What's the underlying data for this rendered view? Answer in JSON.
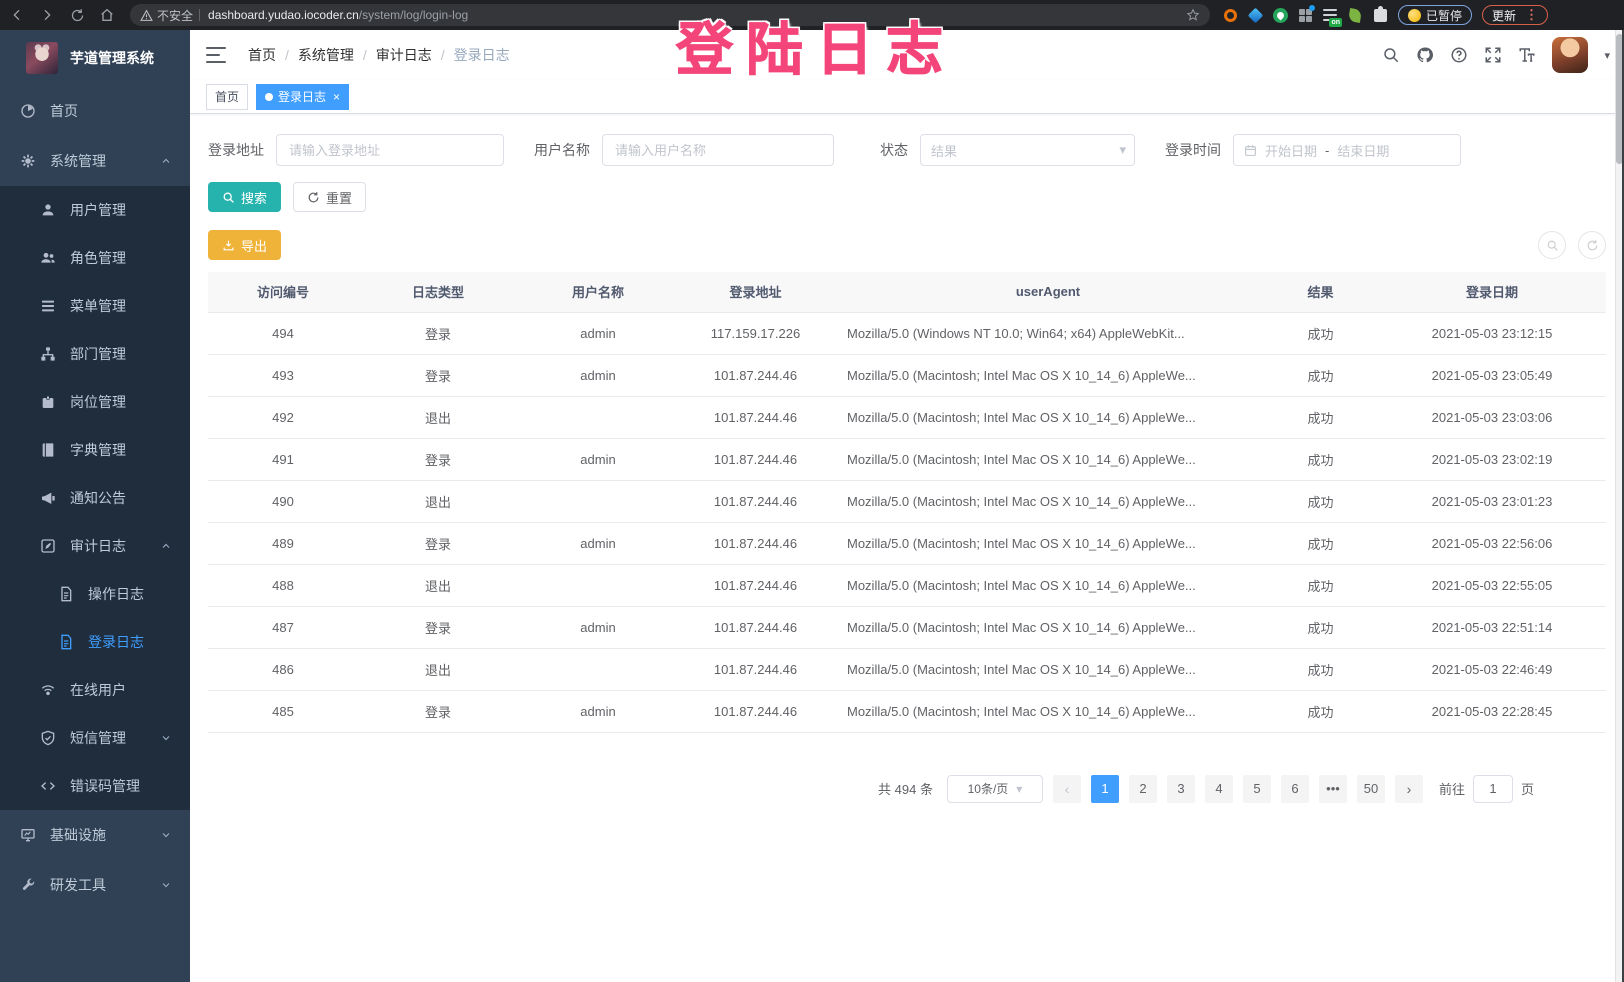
{
  "browser": {
    "security_warning": "不安全",
    "url_host": "dashboard.yudao.iocoder.cn",
    "url_path": "/system/log/login-log",
    "paused_badge": "已暂停",
    "update_button": "更新",
    "extension_on_badge": "on"
  },
  "overlay": {
    "annotation": "登陆日志"
  },
  "sidebar": {
    "app_title": "芋道管理系统",
    "menu": [
      {
        "label": "首页",
        "icon": "dashboard",
        "level": 0
      },
      {
        "label": "系统管理",
        "icon": "gear",
        "level": 0,
        "arrow": "up"
      },
      {
        "label": "用户管理",
        "icon": "user",
        "level": 1
      },
      {
        "label": "角色管理",
        "icon": "users",
        "level": 1
      },
      {
        "label": "菜单管理",
        "icon": "menu-list",
        "level": 1
      },
      {
        "label": "部门管理",
        "icon": "tree",
        "level": 1
      },
      {
        "label": "岗位管理",
        "icon": "badge",
        "level": 1
      },
      {
        "label": "字典管理",
        "icon": "book",
        "level": 1
      },
      {
        "label": "通知公告",
        "icon": "megaphone",
        "level": 1
      },
      {
        "label": "审计日志",
        "icon": "edit",
        "level": 1,
        "arrow": "up"
      },
      {
        "label": "操作日志",
        "icon": "document",
        "level": 2
      },
      {
        "label": "登录日志",
        "icon": "document",
        "level": 2,
        "active": true
      },
      {
        "label": "在线用户",
        "icon": "online",
        "level": 1
      },
      {
        "label": "短信管理",
        "icon": "shield",
        "level": 1,
        "arrow": "down"
      },
      {
        "label": "错误码管理",
        "icon": "code",
        "level": 1
      },
      {
        "label": "基础设施",
        "icon": "monitor",
        "level": 0,
        "arrow": "down"
      },
      {
        "label": "研发工具",
        "icon": "tool",
        "level": 0,
        "arrow": "down"
      }
    ]
  },
  "header": {
    "breadcrumb": [
      "首页",
      "系统管理",
      "审计日志",
      "登录日志"
    ]
  },
  "tabs": [
    {
      "label": "首页",
      "active": false
    },
    {
      "label": "登录日志",
      "active": true,
      "closable": true
    }
  ],
  "filters": {
    "login_address_label": "登录地址",
    "login_address_placeholder": "请输入登录地址",
    "username_label": "用户名称",
    "username_placeholder": "请输入用户名称",
    "status_label": "状态",
    "status_placeholder": "结果",
    "login_time_label": "登录时间",
    "date_start_placeholder": "开始日期",
    "date_separator": "-",
    "date_end_placeholder": "结束日期",
    "search_button": "搜索",
    "reset_button": "重置"
  },
  "toolbar": {
    "export_button": "导出"
  },
  "table": {
    "columns": [
      "访问编号",
      "日志类型",
      "用户名称",
      "登录地址",
      "userAgent",
      "结果",
      "登录日期"
    ],
    "rows": [
      {
        "id": "494",
        "type": "登录",
        "user": "admin",
        "ip": "117.159.17.226",
        "ua": "Mozilla/5.0 (Windows NT 10.0; Win64; x64) AppleWebKit...",
        "result": "成功",
        "date": "2021-05-03 23:12:15"
      },
      {
        "id": "493",
        "type": "登录",
        "user": "admin",
        "ip": "101.87.244.46",
        "ua": "Mozilla/5.0 (Macintosh; Intel Mac OS X 10_14_6) AppleWe...",
        "result": "成功",
        "date": "2021-05-03 23:05:49"
      },
      {
        "id": "492",
        "type": "退出",
        "user": "",
        "ip": "101.87.244.46",
        "ua": "Mozilla/5.0 (Macintosh; Intel Mac OS X 10_14_6) AppleWe...",
        "result": "成功",
        "date": "2021-05-03 23:03:06"
      },
      {
        "id": "491",
        "type": "登录",
        "user": "admin",
        "ip": "101.87.244.46",
        "ua": "Mozilla/5.0 (Macintosh; Intel Mac OS X 10_14_6) AppleWe...",
        "result": "成功",
        "date": "2021-05-03 23:02:19"
      },
      {
        "id": "490",
        "type": "退出",
        "user": "",
        "ip": "101.87.244.46",
        "ua": "Mozilla/5.0 (Macintosh; Intel Mac OS X 10_14_6) AppleWe...",
        "result": "成功",
        "date": "2021-05-03 23:01:23"
      },
      {
        "id": "489",
        "type": "登录",
        "user": "admin",
        "ip": "101.87.244.46",
        "ua": "Mozilla/5.0 (Macintosh; Intel Mac OS X 10_14_6) AppleWe...",
        "result": "成功",
        "date": "2021-05-03 22:56:06"
      },
      {
        "id": "488",
        "type": "退出",
        "user": "",
        "ip": "101.87.244.46",
        "ua": "Mozilla/5.0 (Macintosh; Intel Mac OS X 10_14_6) AppleWe...",
        "result": "成功",
        "date": "2021-05-03 22:55:05"
      },
      {
        "id": "487",
        "type": "登录",
        "user": "admin",
        "ip": "101.87.244.46",
        "ua": "Mozilla/5.0 (Macintosh; Intel Mac OS X 10_14_6) AppleWe...",
        "result": "成功",
        "date": "2021-05-03 22:51:14"
      },
      {
        "id": "486",
        "type": "退出",
        "user": "",
        "ip": "101.87.244.46",
        "ua": "Mozilla/5.0 (Macintosh; Intel Mac OS X 10_14_6) AppleWe...",
        "result": "成功",
        "date": "2021-05-03 22:46:49"
      },
      {
        "id": "485",
        "type": "登录",
        "user": "admin",
        "ip": "101.87.244.46",
        "ua": "Mozilla/5.0 (Macintosh; Intel Mac OS X 10_14_6) AppleWe...",
        "result": "成功",
        "date": "2021-05-03 22:28:45"
      }
    ]
  },
  "pagination": {
    "total_text": "共 494 条",
    "page_size": "10条/页",
    "prev": "‹",
    "next": "›",
    "pages": [
      "1",
      "2",
      "3",
      "4",
      "5",
      "6",
      "•••",
      "50"
    ],
    "active_page": "1",
    "goto_label": "前往",
    "goto_value": "1",
    "goto_suffix": "页"
  },
  "colors": {
    "accent_blue": "#409eff",
    "search_teal": "#26b3ad",
    "export_orange": "#efb339",
    "annotation_pink": "#f4457a",
    "sidebar_bg": "#304156",
    "submenu_bg": "#1f2d3d"
  }
}
